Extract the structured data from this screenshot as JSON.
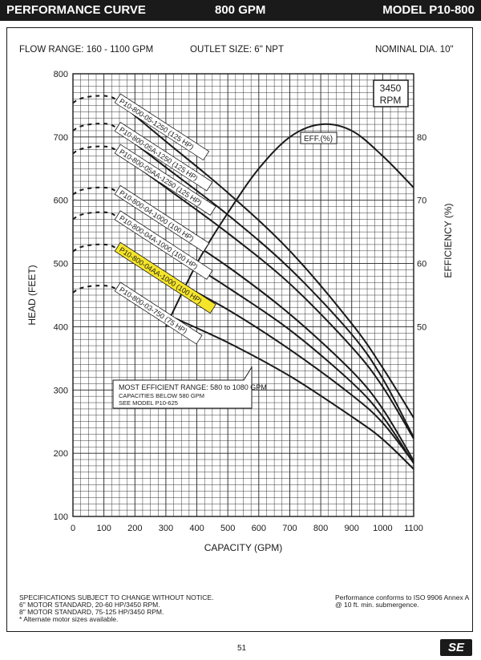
{
  "header": {
    "title": "PERFORMANCE CURVE",
    "flow": "800 GPM",
    "model": "MODEL  P10-800"
  },
  "info": {
    "flow_range": "FLOW RANGE: 160 - 1100 GPM",
    "outlet": "OUTLET SIZE: 6\" NPT",
    "diameter": "NOMINAL DIA. 10\""
  },
  "footer": {
    "left_line1": "SPECIFICATIONS SUBJECT TO CHANGE WITHOUT NOTICE.",
    "left_line2": "6\" MOTOR STANDARD, 20-60 HP/3450 RPM.",
    "left_line3": "8\" MOTOR STANDARD, 75-125 HP/3450 RPM.",
    "left_line4": "* Alternate motor sizes available.",
    "right_line1": "Performance conforms to ISO 9906 Annex A",
    "right_line2": "@ 10 ft. min. submergence.",
    "page": "51",
    "logo": "SE"
  },
  "chart_data": {
    "type": "line",
    "xlabel": "CAPACITY (GPM)",
    "ylabel": "HEAD (FEET)",
    "y2label": "EFFICIENCY (%)",
    "xlim": [
      0,
      1100
    ],
    "ylim": [
      100,
      800
    ],
    "y2lim": [
      50,
      80
    ],
    "x_ticks": [
      0,
      100,
      200,
      300,
      400,
      500,
      600,
      700,
      800,
      900,
      1000,
      1100
    ],
    "y_ticks": [
      100,
      200,
      300,
      400,
      500,
      600,
      700,
      800
    ],
    "y2_ticks": [
      50,
      60,
      70,
      80
    ],
    "rpm_box": [
      "3450",
      "RPM"
    ],
    "note": {
      "line1": "MOST EFFICIENT RANGE: 580 to 1080 GPM",
      "line2": "CAPACITIES BELOW 580 GPM",
      "line3": "SEE MODEL P10-625"
    },
    "highlight_color": "#f5e52a",
    "series": [
      {
        "name": "P10-800-05-1250 (125 HP)",
        "x": [
          160,
          300,
          500,
          700,
          900,
          1000,
          1100
        ],
        "y": [
          750,
          693,
          612,
          520,
          405,
          335,
          256
        ],
        "lowflow_head": 762
      },
      {
        "name": "P10-800-05A-1250 (125 HP)",
        "x": [
          160,
          300,
          500,
          700,
          900,
          1000,
          1100
        ],
        "y": [
          705,
          652,
          577,
          492,
          388,
          318,
          225
        ],
        "lowflow_head": 718
      },
      {
        "name": "P10-800-05AA-1250 (125 HP)",
        "x": [
          160,
          300,
          500,
          700,
          900,
          1000,
          1100
        ],
        "y": [
          670,
          620,
          548,
          468,
          368,
          305,
          223
        ],
        "lowflow_head": 682
      },
      {
        "name": "P10-800-04-1000 (100 HP)",
        "x": [
          160,
          300,
          500,
          700,
          900,
          1000,
          1100
        ],
        "y": [
          605,
          560,
          495,
          420,
          330,
          270,
          188
        ],
        "lowflow_head": 617
      },
      {
        "name": "P10-800-04A-1000 (100 HP)",
        "x": [
          160,
          300,
          500,
          700,
          900,
          1000,
          1100
        ],
        "y": [
          565,
          524,
          462,
          395,
          312,
          258,
          184
        ],
        "lowflow_head": 578
      },
      {
        "name": "P10-800-04AA-1000 (100 HP)",
        "x": [
          160,
          300,
          500,
          700,
          900,
          1000,
          1100
        ],
        "y": [
          515,
          480,
          427,
          364,
          292,
          248,
          185
        ],
        "lowflow_head": 527,
        "highlight": true
      },
      {
        "name": "P10-800-03-750 (75 HP)",
        "x": [
          160,
          300,
          500,
          700,
          900,
          1000,
          1100
        ],
        "y": [
          452,
          420,
          375,
          322,
          258,
          222,
          175
        ],
        "lowflow_head": 462
      }
    ],
    "efficiency": {
      "name": "EFF.(%)",
      "x": [
        300,
        400,
        500,
        600,
        700,
        800,
        900,
        1000,
        1100
      ],
      "y": [
        50,
        60,
        68,
        75,
        80,
        82,
        81,
        77,
        72
      ]
    }
  }
}
